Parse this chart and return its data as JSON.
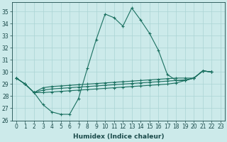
{
  "xlabel": "Humidex (Indice chaleur)",
  "xlim_min": -0.5,
  "xlim_max": 23.5,
  "ylim_min": 26,
  "ylim_max": 35.8,
  "yticks": [
    26,
    27,
    28,
    29,
    30,
    31,
    32,
    33,
    34,
    35
  ],
  "xticks": [
    0,
    1,
    2,
    3,
    4,
    5,
    6,
    7,
    8,
    9,
    10,
    11,
    12,
    13,
    14,
    15,
    16,
    17,
    18,
    19,
    20,
    21,
    22,
    23
  ],
  "bg_color": "#cceaea",
  "grid_color": "#aad4d4",
  "line_color": "#1a7060",
  "line1_x": [
    0,
    1,
    2,
    3,
    4,
    5,
    6,
    7,
    8,
    9,
    10,
    11,
    12,
    13,
    14,
    15,
    16,
    17,
    18,
    19,
    20,
    21,
    22
  ],
  "line1_y": [
    29.5,
    29.0,
    28.3,
    27.3,
    26.7,
    26.5,
    26.5,
    27.8,
    30.3,
    32.7,
    34.8,
    34.5,
    33.8,
    35.3,
    34.3,
    33.2,
    31.8,
    29.8,
    29.3,
    29.3,
    29.5,
    30.1,
    30.0
  ],
  "line2_x": [
    0,
    1,
    2,
    3,
    4,
    5,
    6,
    7,
    8,
    9,
    10,
    11,
    12,
    13,
    14,
    15,
    16,
    17,
    18,
    19,
    20,
    21,
    22
  ],
  "line2_y": [
    29.5,
    29.0,
    28.3,
    28.3,
    28.35,
    28.4,
    28.45,
    28.5,
    28.55,
    28.6,
    28.65,
    28.7,
    28.75,
    28.8,
    28.85,
    28.9,
    28.95,
    29.0,
    29.1,
    29.3,
    29.5,
    30.1,
    30.0
  ],
  "line3_x": [
    0,
    1,
    2,
    3,
    4,
    5,
    6,
    7,
    8,
    9,
    10,
    11,
    12,
    13,
    14,
    15,
    16,
    17,
    18,
    19,
    20,
    21,
    22
  ],
  "line3_y": [
    29.5,
    29.0,
    28.3,
    28.5,
    28.6,
    28.65,
    28.7,
    28.75,
    28.8,
    28.85,
    28.9,
    28.95,
    29.0,
    29.05,
    29.1,
    29.15,
    29.2,
    29.25,
    29.3,
    29.35,
    29.5,
    30.1,
    30.0
  ],
  "line4_x": [
    0,
    1,
    2,
    3,
    4,
    5,
    6,
    7,
    8,
    9,
    10,
    11,
    12,
    13,
    14,
    15,
    16,
    17,
    18,
    19,
    20,
    21,
    22
  ],
  "line4_y": [
    29.5,
    29.0,
    28.3,
    28.7,
    28.8,
    28.85,
    28.9,
    28.95,
    29.0,
    29.05,
    29.1,
    29.15,
    29.2,
    29.25,
    29.3,
    29.35,
    29.4,
    29.45,
    29.5,
    29.5,
    29.5,
    30.1,
    30.0
  ],
  "tick_fontsize": 5.5,
  "xlabel_fontsize": 6.5
}
